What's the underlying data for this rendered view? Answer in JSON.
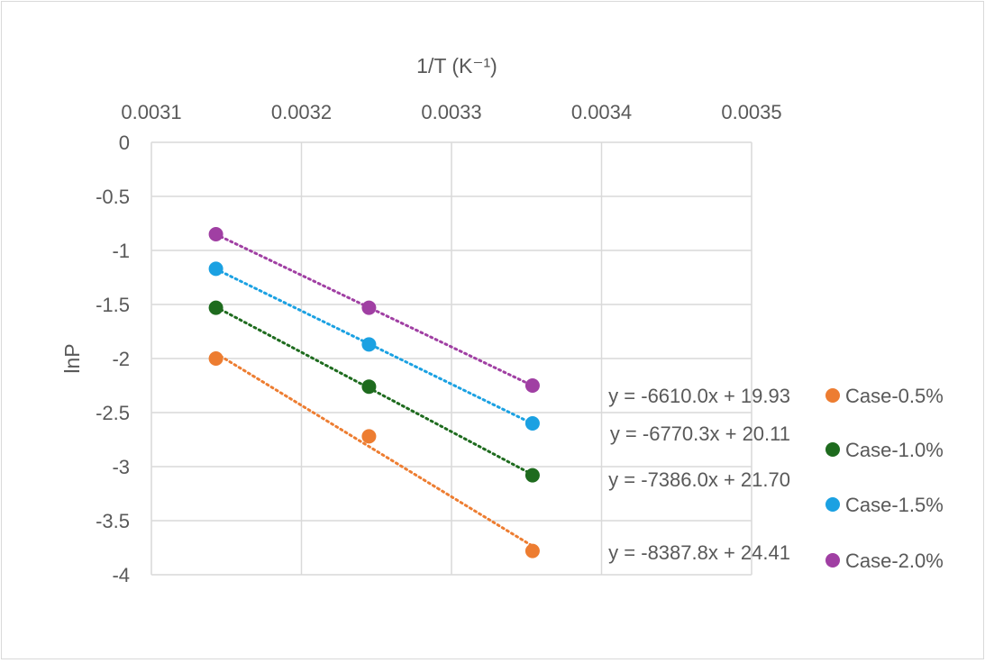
{
  "chart_data": {
    "type": "scatter",
    "title": "",
    "xlabel": "1/T (K⁻¹)",
    "ylabel": "lnP",
    "x_axis_position": "top",
    "xlim": [
      0.0031,
      0.0035
    ],
    "ylim": [
      -4,
      0
    ],
    "x_ticks": [
      "0.0031",
      "0.0032",
      "0.0033",
      "0.0034",
      "0.0035"
    ],
    "y_ticks": [
      "0",
      "-0.5",
      "-1",
      "-1.5",
      "-2",
      "-2.5",
      "-3",
      "-3.5",
      "-4"
    ],
    "grid": true,
    "legend_position": "right",
    "trendline": "linear, dotted",
    "series": [
      {
        "name": "Case-0.5%",
        "color": "#ed7d31",
        "points": [
          [
            0.003143,
            -2.0
          ],
          [
            0.003245,
            -2.72
          ],
          [
            0.003354,
            -3.78
          ]
        ],
        "equation": "y = -8387.8x + 24.41"
      },
      {
        "name": "Case-1.0%",
        "color": "#1e6b1e",
        "points": [
          [
            0.003143,
            -1.53
          ],
          [
            0.003245,
            -2.26
          ],
          [
            0.003354,
            -3.08
          ]
        ],
        "equation": "y = -7386.0x + 21.70"
      },
      {
        "name": "Case-1.5%",
        "color": "#1ba1e2",
        "points": [
          [
            0.003143,
            -1.17
          ],
          [
            0.003245,
            -1.87
          ],
          [
            0.003354,
            -2.6
          ]
        ],
        "equation": "y = -6770.3x + 20.11"
      },
      {
        "name": "Case-2.0%",
        "color": "#a03fa3",
        "points": [
          [
            0.003143,
            -0.85
          ],
          [
            0.003245,
            -1.53
          ],
          [
            0.003354,
            -2.25
          ]
        ],
        "equation": "y = -6610.0x + 19.93"
      }
    ]
  }
}
